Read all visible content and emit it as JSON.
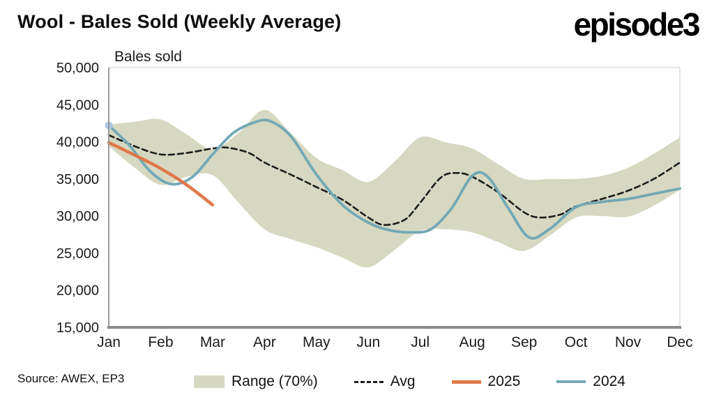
{
  "header": {
    "title": "Wool - Bales Sold (Weekly Average)",
    "logo": "episode3"
  },
  "chart": {
    "axis_title": "Bales sold",
    "source": "Source: AWEX, EP3"
  },
  "colors": {
    "band": "#d6d8c1",
    "avg": "#1c1c1c",
    "y2025": "#df7848",
    "y2024": "#73a8b5",
    "start_dot": "#a9c7e8",
    "axis": "#8a8a8a",
    "border": "#c8c8c8"
  },
  "legend": [
    {
      "label": "Range (70%)",
      "type": "band",
      "color": "#d6d8c1"
    },
    {
      "label": "Avg",
      "type": "dashed",
      "color": "#1c1c1c"
    },
    {
      "label": "2025",
      "type": "solid-thick",
      "color": "#df7848"
    },
    {
      "label": "2024",
      "type": "solid",
      "color": "#73a8b5"
    }
  ],
  "chart_data": {
    "type": "line",
    "title": "Wool - Bales Sold (Weekly Average)",
    "ylabel": "Bales sold",
    "categories": [
      "Jan",
      "Feb",
      "Mar",
      "Apr",
      "May",
      "Jun",
      "Jul",
      "Aug",
      "Sep",
      "Oct",
      "Nov",
      "Dec"
    ],
    "ylim": [
      15000,
      50000
    ],
    "ytick_step": 5000,
    "grid": false,
    "legend_position": "bottom",
    "series": [
      {
        "name": "Range (70%)",
        "kind": "band",
        "x": [
          0,
          0.5,
          1,
          1.5,
          2,
          2.5,
          3,
          3.5,
          4,
          4.5,
          5,
          5.5,
          6,
          6.5,
          7,
          7.5,
          8,
          8.5,
          9,
          9.5,
          10,
          10.5,
          11
        ],
        "upper": [
          42300,
          42700,
          43000,
          41000,
          39000,
          41200,
          44300,
          41200,
          37800,
          36200,
          34600,
          37300,
          40600,
          39900,
          39100,
          37000,
          35000,
          35000,
          35000,
          35400,
          36500,
          38400,
          40600
        ],
        "lower": [
          39400,
          36500,
          34200,
          35300,
          35500,
          31800,
          28200,
          26900,
          25800,
          24400,
          23100,
          25400,
          28000,
          28200,
          27800,
          26500,
          25300,
          27400,
          29800,
          30000,
          29900,
          31400,
          33500
        ]
      },
      {
        "name": "Avg",
        "kind": "dashed-line",
        "x": [
          0,
          0.5,
          1,
          1.5,
          2,
          2.3,
          2.7,
          3,
          3.5,
          4,
          4.5,
          5,
          5.3,
          5.7,
          6,
          6.4,
          6.7,
          7,
          7.5,
          8,
          8.3,
          8.7,
          9,
          9.5,
          10,
          10.5,
          11
        ],
        "values": [
          40900,
          39400,
          38300,
          38500,
          39100,
          39200,
          38500,
          37200,
          35600,
          33900,
          32200,
          29800,
          28800,
          29500,
          31800,
          35200,
          35800,
          35300,
          33200,
          30500,
          29800,
          30200,
          31300,
          32300,
          33400,
          35000,
          37200
        ]
      },
      {
        "name": "2025",
        "kind": "line",
        "x": [
          0,
          0.5,
          1,
          1.5,
          2
        ],
        "values": [
          39900,
          38200,
          36400,
          34200,
          31500
        ]
      },
      {
        "name": "2024",
        "kind": "line",
        "marker_start": true,
        "x": [
          0,
          0.4,
          0.8,
          1.2,
          1.6,
          2,
          2.4,
          2.8,
          3.1,
          3.5,
          4,
          4.5,
          5,
          5.4,
          5.8,
          6.2,
          6.6,
          7,
          7.3,
          7.7,
          8.1,
          8.5,
          9,
          9.5,
          10,
          10.5,
          11
        ],
        "values": [
          42200,
          39500,
          36000,
          34300,
          35200,
          38300,
          41200,
          42600,
          42800,
          40800,
          35600,
          31500,
          29100,
          28100,
          27800,
          28200,
          31000,
          35400,
          35300,
          31000,
          27100,
          28300,
          31200,
          31900,
          32300,
          33000,
          33700
        ]
      }
    ]
  }
}
